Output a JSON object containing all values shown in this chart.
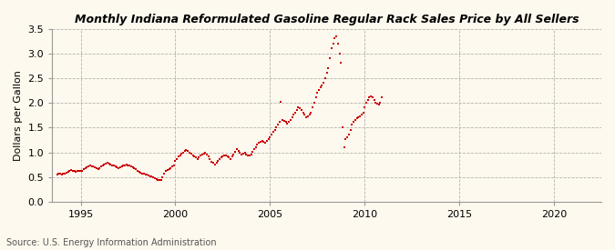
{
  "title": "Monthly Indiana Reformulated Gasoline Regular Rack Sales Price by All Sellers",
  "ylabel": "Dollars per Gallon",
  "source": "Source: U.S. Energy Information Administration",
  "bg_color": "#FEF9EE",
  "marker_color": "#CC0000",
  "xlim": [
    1993.5,
    2022.5
  ],
  "ylim": [
    0.0,
    3.5
  ],
  "xticks": [
    1995,
    2000,
    2005,
    2010,
    2015,
    2020
  ],
  "yticks": [
    0.0,
    0.5,
    1.0,
    1.5,
    2.0,
    2.5,
    3.0,
    3.5
  ],
  "data": [
    [
      1993.75,
      0.54
    ],
    [
      1993.83,
      0.56
    ],
    [
      1993.92,
      0.57
    ],
    [
      1994.0,
      0.55
    ],
    [
      1994.08,
      0.56
    ],
    [
      1994.17,
      0.57
    ],
    [
      1994.25,
      0.59
    ],
    [
      1994.33,
      0.61
    ],
    [
      1994.42,
      0.63
    ],
    [
      1994.5,
      0.64
    ],
    [
      1994.58,
      0.63
    ],
    [
      1994.67,
      0.62
    ],
    [
      1994.75,
      0.61
    ],
    [
      1994.83,
      0.62
    ],
    [
      1994.92,
      0.62
    ],
    [
      1995.0,
      0.62
    ],
    [
      1995.08,
      0.63
    ],
    [
      1995.17,
      0.65
    ],
    [
      1995.25,
      0.68
    ],
    [
      1995.33,
      0.69
    ],
    [
      1995.42,
      0.71
    ],
    [
      1995.5,
      0.73
    ],
    [
      1995.58,
      0.72
    ],
    [
      1995.67,
      0.71
    ],
    [
      1995.75,
      0.7
    ],
    [
      1995.83,
      0.68
    ],
    [
      1995.92,
      0.66
    ],
    [
      1996.0,
      0.68
    ],
    [
      1996.08,
      0.71
    ],
    [
      1996.17,
      0.73
    ],
    [
      1996.25,
      0.76
    ],
    [
      1996.33,
      0.77
    ],
    [
      1996.42,
      0.78
    ],
    [
      1996.5,
      0.77
    ],
    [
      1996.58,
      0.76
    ],
    [
      1996.67,
      0.74
    ],
    [
      1996.75,
      0.73
    ],
    [
      1996.83,
      0.71
    ],
    [
      1996.92,
      0.69
    ],
    [
      1997.0,
      0.68
    ],
    [
      1997.08,
      0.69
    ],
    [
      1997.17,
      0.71
    ],
    [
      1997.25,
      0.73
    ],
    [
      1997.33,
      0.74
    ],
    [
      1997.42,
      0.75
    ],
    [
      1997.5,
      0.74
    ],
    [
      1997.58,
      0.73
    ],
    [
      1997.67,
      0.72
    ],
    [
      1997.75,
      0.7
    ],
    [
      1997.83,
      0.68
    ],
    [
      1997.92,
      0.66
    ],
    [
      1998.0,
      0.63
    ],
    [
      1998.08,
      0.61
    ],
    [
      1998.17,
      0.59
    ],
    [
      1998.25,
      0.57
    ],
    [
      1998.33,
      0.56
    ],
    [
      1998.42,
      0.55
    ],
    [
      1998.5,
      0.54
    ],
    [
      1998.58,
      0.53
    ],
    [
      1998.67,
      0.52
    ],
    [
      1998.75,
      0.51
    ],
    [
      1998.83,
      0.5
    ],
    [
      1998.92,
      0.48
    ],
    [
      1999.0,
      0.46
    ],
    [
      1999.08,
      0.44
    ],
    [
      1999.17,
      0.43
    ],
    [
      1999.25,
      0.44
    ],
    [
      1999.33,
      0.49
    ],
    [
      1999.42,
      0.57
    ],
    [
      1999.5,
      0.63
    ],
    [
      1999.58,
      0.64
    ],
    [
      1999.67,
      0.66
    ],
    [
      1999.75,
      0.68
    ],
    [
      1999.83,
      0.71
    ],
    [
      1999.92,
      0.73
    ],
    [
      2000.0,
      0.82
    ],
    [
      2000.08,
      0.87
    ],
    [
      2000.17,
      0.92
    ],
    [
      2000.25,
      0.94
    ],
    [
      2000.33,
      0.97
    ],
    [
      2000.42,
      1.0
    ],
    [
      2000.5,
      1.02
    ],
    [
      2000.58,
      1.04
    ],
    [
      2000.67,
      1.02
    ],
    [
      2000.75,
      1.0
    ],
    [
      2000.83,
      0.97
    ],
    [
      2000.92,
      0.94
    ],
    [
      2001.0,
      0.91
    ],
    [
      2001.08,
      0.89
    ],
    [
      2001.17,
      0.87
    ],
    [
      2001.25,
      0.89
    ],
    [
      2001.33,
      0.93
    ],
    [
      2001.42,
      0.96
    ],
    [
      2001.5,
      0.98
    ],
    [
      2001.58,
      0.99
    ],
    [
      2001.67,
      0.96
    ],
    [
      2001.75,
      0.91
    ],
    [
      2001.83,
      0.86
    ],
    [
      2001.92,
      0.81
    ],
    [
      2002.0,
      0.79
    ],
    [
      2002.08,
      0.76
    ],
    [
      2002.17,
      0.79
    ],
    [
      2002.25,
      0.83
    ],
    [
      2002.33,
      0.86
    ],
    [
      2002.42,
      0.89
    ],
    [
      2002.5,
      0.91
    ],
    [
      2002.58,
      0.93
    ],
    [
      2002.67,
      0.94
    ],
    [
      2002.75,
      0.91
    ],
    [
      2002.83,
      0.89
    ],
    [
      2002.92,
      0.86
    ],
    [
      2003.0,
      0.91
    ],
    [
      2003.08,
      0.96
    ],
    [
      2003.17,
      1.01
    ],
    [
      2003.25,
      1.06
    ],
    [
      2003.33,
      1.03
    ],
    [
      2003.42,
      0.99
    ],
    [
      2003.5,
      0.96
    ],
    [
      2003.58,
      0.98
    ],
    [
      2003.67,
      0.99
    ],
    [
      2003.75,
      0.96
    ],
    [
      2003.83,
      0.94
    ],
    [
      2003.92,
      0.93
    ],
    [
      2004.0,
      0.96
    ],
    [
      2004.08,
      1.01
    ],
    [
      2004.17,
      1.06
    ],
    [
      2004.25,
      1.11
    ],
    [
      2004.33,
      1.16
    ],
    [
      2004.42,
      1.19
    ],
    [
      2004.5,
      1.21
    ],
    [
      2004.58,
      1.23
    ],
    [
      2004.67,
      1.21
    ],
    [
      2004.75,
      1.19
    ],
    [
      2004.83,
      1.23
    ],
    [
      2004.92,
      1.26
    ],
    [
      2005.0,
      1.31
    ],
    [
      2005.08,
      1.36
    ],
    [
      2005.17,
      1.41
    ],
    [
      2005.25,
      1.46
    ],
    [
      2005.33,
      1.51
    ],
    [
      2005.42,
      1.56
    ],
    [
      2005.5,
      1.61
    ],
    [
      2005.58,
      2.02
    ],
    [
      2005.67,
      1.66
    ],
    [
      2005.75,
      1.63
    ],
    [
      2005.83,
      1.61
    ],
    [
      2005.92,
      1.59
    ],
    [
      2006.0,
      1.61
    ],
    [
      2006.08,
      1.66
    ],
    [
      2006.17,
      1.71
    ],
    [
      2006.25,
      1.76
    ],
    [
      2006.33,
      1.81
    ],
    [
      2006.42,
      1.86
    ],
    [
      2006.5,
      1.91
    ],
    [
      2006.58,
      1.89
    ],
    [
      2006.67,
      1.86
    ],
    [
      2006.75,
      1.81
    ],
    [
      2006.83,
      1.76
    ],
    [
      2006.92,
      1.71
    ],
    [
      2007.0,
      1.73
    ],
    [
      2007.08,
      1.76
    ],
    [
      2007.17,
      1.81
    ],
    [
      2007.25,
      1.91
    ],
    [
      2007.33,
      2.01
    ],
    [
      2007.42,
      2.11
    ],
    [
      2007.5,
      2.21
    ],
    [
      2007.58,
      2.26
    ],
    [
      2007.67,
      2.31
    ],
    [
      2007.75,
      2.36
    ],
    [
      2007.83,
      2.41
    ],
    [
      2007.92,
      2.51
    ],
    [
      2008.0,
      2.61
    ],
    [
      2008.08,
      2.71
    ],
    [
      2008.17,
      2.91
    ],
    [
      2008.25,
      3.11
    ],
    [
      2008.33,
      3.21
    ],
    [
      2008.42,
      3.31
    ],
    [
      2008.5,
      3.36
    ],
    [
      2008.58,
      3.21
    ],
    [
      2008.67,
      3.01
    ],
    [
      2008.75,
      2.81
    ],
    [
      2008.83,
      1.51
    ],
    [
      2008.92,
      1.11
    ],
    [
      2009.0,
      1.26
    ],
    [
      2009.08,
      1.31
    ],
    [
      2009.17,
      1.36
    ],
    [
      2009.25,
      1.46
    ],
    [
      2009.33,
      1.56
    ],
    [
      2009.42,
      1.61
    ],
    [
      2009.5,
      1.66
    ],
    [
      2009.58,
      1.69
    ],
    [
      2009.67,
      1.71
    ],
    [
      2009.75,
      1.73
    ],
    [
      2009.83,
      1.76
    ],
    [
      2009.92,
      1.81
    ],
    [
      2010.0,
      1.91
    ],
    [
      2010.08,
      2.01
    ],
    [
      2010.17,
      2.06
    ],
    [
      2010.25,
      2.11
    ],
    [
      2010.33,
      2.13
    ],
    [
      2010.42,
      2.11
    ],
    [
      2010.5,
      2.06
    ],
    [
      2010.58,
      2.01
    ],
    [
      2010.67,
      1.99
    ],
    [
      2010.75,
      1.96
    ],
    [
      2010.83,
      2.01
    ],
    [
      2010.92,
      2.11
    ]
  ]
}
